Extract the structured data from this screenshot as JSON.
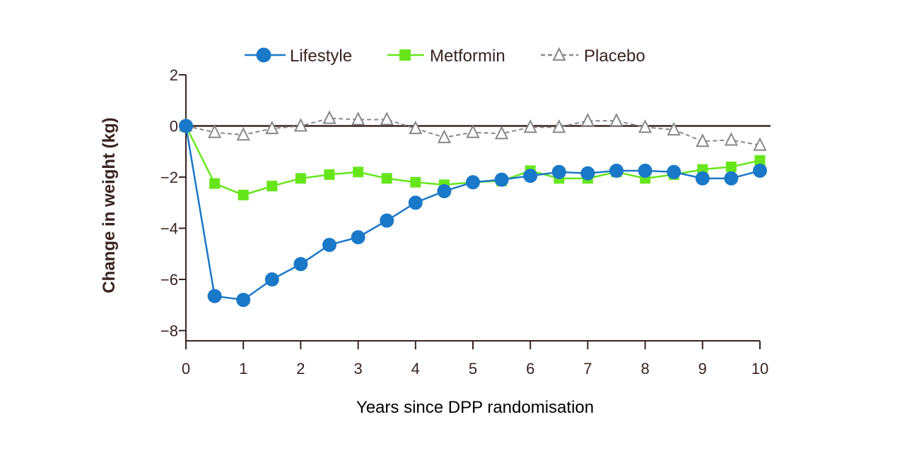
{
  "chart_data": {
    "type": "line",
    "xlabel": "Years since DPP randomisation",
    "ylabel": "Change in weight (kg)",
    "xlim": [
      0,
      10
    ],
    "ylim": [
      -8.4,
      2
    ],
    "x_ticks": [
      0,
      1,
      2,
      3,
      4,
      5,
      6,
      7,
      8,
      9,
      10
    ],
    "y_ticks": [
      2,
      0,
      -2,
      -4,
      -6,
      -8
    ],
    "y_tick_labels": [
      "2",
      "0",
      "−2",
      "−4",
      "−6",
      "−8"
    ],
    "grid": false,
    "reference_line_y": 0,
    "legend_position": "top",
    "series": [
      {
        "name": "Lifestyle",
        "color": "#1a78c8",
        "marker": "circle",
        "line_style": "solid",
        "x": [
          0,
          0.5,
          1,
          1.5,
          2,
          2.5,
          3,
          3.5,
          4,
          4.5,
          5,
          5.5,
          6,
          6.5,
          7,
          7.5,
          8,
          8.5,
          9,
          9.5,
          10
        ],
        "y": [
          0,
          -6.65,
          -6.8,
          -6.0,
          -5.4,
          -4.65,
          -4.35,
          -3.7,
          -3.0,
          -2.55,
          -2.2,
          -2.1,
          -1.95,
          -1.8,
          -1.85,
          -1.75,
          -1.75,
          -1.8,
          -2.05,
          -2.05,
          -1.75
        ]
      },
      {
        "name": "Metformin",
        "color": "#66e61a",
        "marker": "square",
        "line_style": "solid",
        "x": [
          0,
          0.5,
          1,
          1.5,
          2,
          2.5,
          3,
          3.5,
          4,
          4.5,
          5,
          5.5,
          6,
          6.5,
          7,
          7.5,
          8,
          8.5,
          9,
          9.5,
          10
        ],
        "y": [
          0,
          -2.25,
          -2.7,
          -2.35,
          -2.05,
          -1.9,
          -1.8,
          -2.05,
          -2.2,
          -2.3,
          -2.2,
          -2.15,
          -1.75,
          -2.05,
          -2.05,
          -1.8,
          -2.05,
          -1.9,
          -1.7,
          -1.6,
          -1.35
        ]
      },
      {
        "name": "Placebo",
        "color": "#888888",
        "marker": "triangle-open",
        "line_style": "dashed",
        "x": [
          0,
          0.5,
          1,
          1.5,
          2,
          2.5,
          3,
          3.5,
          4,
          4.5,
          5,
          5.5,
          6,
          6.5,
          7,
          7.5,
          8,
          8.5,
          9,
          9.5,
          10
        ],
        "y": [
          0,
          -0.25,
          -0.35,
          -0.1,
          0.0,
          0.3,
          0.25,
          0.25,
          -0.1,
          -0.45,
          -0.25,
          -0.3,
          -0.05,
          -0.05,
          0.2,
          0.2,
          -0.05,
          -0.15,
          -0.6,
          -0.55,
          -0.75
        ]
      }
    ]
  }
}
